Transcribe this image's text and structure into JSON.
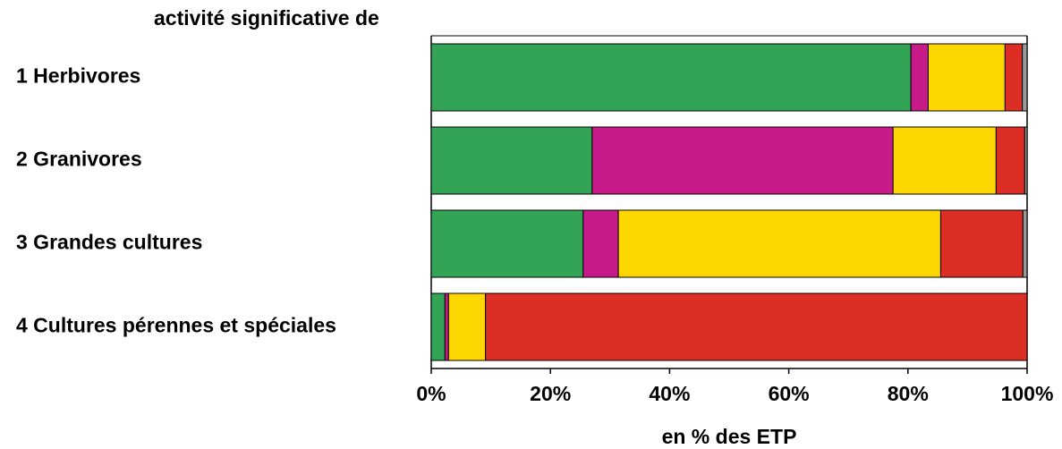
{
  "chart_data": {
    "type": "stacked_bar_horizontal",
    "title": "activité significative de",
    "xlabel": "en % des ETP",
    "categories": [
      "1 Herbivores",
      "2 Granivores",
      "3 Grandes cultures",
      "4 Cultures pérennes et spéciales"
    ],
    "series": [
      {
        "color": "#33a456",
        "values": [
          80.5,
          27.0,
          25.5,
          2.3
        ]
      },
      {
        "color": "#c81b8a",
        "values": [
          2.9,
          50.5,
          5.9,
          0.6
        ]
      },
      {
        "color": "#ffd700",
        "values": [
          12.9,
          17.3,
          54.1,
          6.2
        ]
      },
      {
        "color": "#dd2e26",
        "values": [
          2.9,
          4.8,
          13.8,
          90.9
        ]
      },
      {
        "color": "#999999",
        "values": [
          0.8,
          0.4,
          0.7,
          0
        ]
      }
    ],
    "xlim": [
      0,
      100
    ],
    "xticks": [
      {
        "value": 0,
        "label": "0%"
      },
      {
        "value": 20,
        "label": "20%"
      },
      {
        "value": 40,
        "label": "40%"
      },
      {
        "value": 60,
        "label": "60%"
      },
      {
        "value": 80,
        "label": "80%"
      },
      {
        "value": 100,
        "label": "100%"
      }
    ]
  }
}
